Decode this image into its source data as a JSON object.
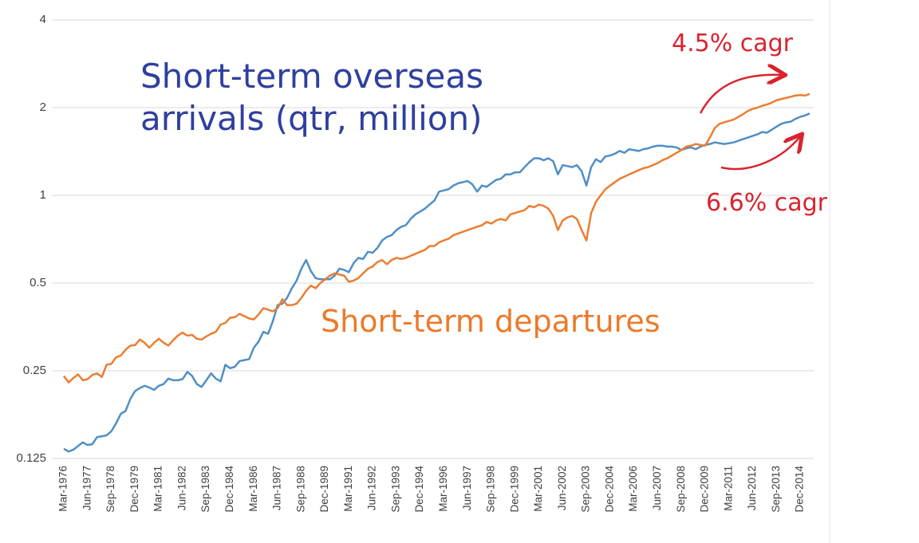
{
  "chart_data": {
    "type": "line",
    "categories": [
      "Mar-1976",
      null,
      null,
      null,
      null,
      "Jun-1977",
      null,
      null,
      null,
      null,
      "Sep-1978",
      null,
      null,
      null,
      null,
      "Dec-1979",
      null,
      null,
      null,
      null,
      "Mar-1981",
      null,
      null,
      null,
      null,
      "Jun-1982",
      null,
      null,
      null,
      null,
      "Sep-1983",
      null,
      null,
      null,
      null,
      "Dec-1984",
      null,
      null,
      null,
      null,
      "Mar-1986",
      null,
      null,
      null,
      null,
      "Jun-1987",
      null,
      null,
      null,
      null,
      "Sep-1988",
      null,
      null,
      null,
      null,
      "Dec-1989",
      null,
      null,
      null,
      null,
      "Mar-1991",
      null,
      null,
      null,
      null,
      "Jun-1992",
      null,
      null,
      null,
      null,
      "Sep-1993",
      null,
      null,
      null,
      null,
      "Dec-1994",
      null,
      null,
      null,
      null,
      "Mar-1996",
      null,
      null,
      null,
      null,
      "Jun-1997",
      null,
      null,
      null,
      null,
      "Sep-1998",
      null,
      null,
      null,
      null,
      "Dec-1999",
      null,
      null,
      null,
      null,
      "Mar-2001",
      null,
      null,
      null,
      null,
      "Jun-2002",
      null,
      null,
      null,
      null,
      "Sep-2003",
      null,
      null,
      null,
      null,
      "Dec-2004",
      null,
      null,
      null,
      null,
      "Mar-2006",
      null,
      null,
      null,
      null,
      "Jun-2007",
      null,
      null,
      null,
      null,
      "Sep-2008",
      null,
      null,
      null,
      null,
      "Dec-2009",
      null,
      null,
      null,
      null,
      "Mar-2011",
      null,
      null,
      null,
      null,
      "Jun-2012",
      null,
      null,
      null,
      null,
      "Sep-2013",
      null,
      null,
      null,
      null,
      "Dec-2014",
      null,
      null
    ],
    "series": [
      {
        "name": "Short-term overseas arrivals (qtr, million)",
        "color": "#4f8fc6",
        "values": [
          0.135,
          0.132,
          0.134,
          0.138,
          0.142,
          0.139,
          0.14,
          0.148,
          0.149,
          0.15,
          0.155,
          0.165,
          0.178,
          0.182,
          0.2,
          0.213,
          0.218,
          0.222,
          0.219,
          0.215,
          0.222,
          0.225,
          0.235,
          0.232,
          0.232,
          0.234,
          0.248,
          0.24,
          0.225,
          0.22,
          0.232,
          0.245,
          0.235,
          0.23,
          0.262,
          0.255,
          0.258,
          0.27,
          0.272,
          0.274,
          0.3,
          0.315,
          0.34,
          0.335,
          0.37,
          0.42,
          0.425,
          0.445,
          0.48,
          0.51,
          0.56,
          0.6,
          0.55,
          0.52,
          0.515,
          0.515,
          0.515,
          0.53,
          0.56,
          0.555,
          0.545,
          0.585,
          0.61,
          0.605,
          0.64,
          0.635,
          0.66,
          0.7,
          0.72,
          0.73,
          0.76,
          0.78,
          0.79,
          0.83,
          0.86,
          0.88,
          0.9,
          0.93,
          0.96,
          1.03,
          1.04,
          1.05,
          1.08,
          1.1,
          1.11,
          1.12,
          1.09,
          1.03,
          1.08,
          1.07,
          1.1,
          1.13,
          1.14,
          1.18,
          1.18,
          1.2,
          1.2,
          1.25,
          1.3,
          1.34,
          1.34,
          1.32,
          1.34,
          1.31,
          1.18,
          1.27,
          1.26,
          1.25,
          1.27,
          1.21,
          1.08,
          1.25,
          1.33,
          1.3,
          1.36,
          1.37,
          1.39,
          1.42,
          1.4,
          1.44,
          1.43,
          1.42,
          1.44,
          1.45,
          1.47,
          1.48,
          1.48,
          1.47,
          1.47,
          1.46,
          1.43,
          1.45,
          1.46,
          1.44,
          1.47,
          1.49,
          1.5,
          1.52,
          1.51,
          1.5,
          1.51,
          1.52,
          1.54,
          1.56,
          1.58,
          1.6,
          1.62,
          1.65,
          1.64,
          1.68,
          1.72,
          1.76,
          1.78,
          1.79,
          1.83,
          1.86,
          1.88,
          1.91
        ]
      },
      {
        "name": "Short-term departures",
        "color": "#ed7d31",
        "values": [
          0.24,
          0.228,
          0.236,
          0.243,
          0.232,
          0.234,
          0.242,
          0.245,
          0.238,
          0.262,
          0.264,
          0.278,
          0.282,
          0.295,
          0.305,
          0.306,
          0.32,
          0.312,
          0.3,
          0.312,
          0.322,
          0.312,
          0.305,
          0.318,
          0.33,
          0.338,
          0.33,
          0.332,
          0.322,
          0.32,
          0.328,
          0.335,
          0.34,
          0.36,
          0.365,
          0.38,
          0.382,
          0.392,
          0.385,
          0.378,
          0.375,
          0.39,
          0.41,
          0.405,
          0.4,
          0.41,
          0.44,
          0.42,
          0.42,
          0.425,
          0.445,
          0.47,
          0.49,
          0.48,
          0.5,
          0.515,
          0.53,
          0.54,
          0.535,
          0.53,
          0.505,
          0.51,
          0.52,
          0.54,
          0.56,
          0.57,
          0.59,
          0.6,
          0.58,
          0.6,
          0.61,
          0.605,
          0.61,
          0.62,
          0.63,
          0.64,
          0.65,
          0.67,
          0.67,
          0.69,
          0.7,
          0.71,
          0.73,
          0.74,
          0.75,
          0.76,
          0.77,
          0.78,
          0.79,
          0.81,
          0.8,
          0.82,
          0.83,
          0.82,
          0.86,
          0.87,
          0.88,
          0.89,
          0.92,
          0.91,
          0.93,
          0.92,
          0.9,
          0.85,
          0.76,
          0.82,
          0.84,
          0.85,
          0.83,
          0.76,
          0.7,
          0.87,
          0.95,
          1.0,
          1.05,
          1.08,
          1.11,
          1.14,
          1.16,
          1.18,
          1.2,
          1.22,
          1.24,
          1.25,
          1.27,
          1.29,
          1.32,
          1.34,
          1.37,
          1.4,
          1.43,
          1.47,
          1.48,
          1.5,
          1.49,
          1.48,
          1.58,
          1.7,
          1.76,
          1.78,
          1.8,
          1.82,
          1.86,
          1.9,
          1.95,
          1.98,
          2.0,
          2.03,
          2.05,
          2.08,
          2.12,
          2.14,
          2.16,
          2.18,
          2.2,
          2.21,
          2.2,
          2.23
        ]
      }
    ],
    "ylim": [
      0.125,
      4
    ],
    "yticks": [
      0.125,
      0.25,
      0.5,
      1,
      2,
      4
    ],
    "log_scale": true,
    "grid": true,
    "annotations": [
      "4.5% cagr",
      "6.6% cagr"
    ]
  }
}
